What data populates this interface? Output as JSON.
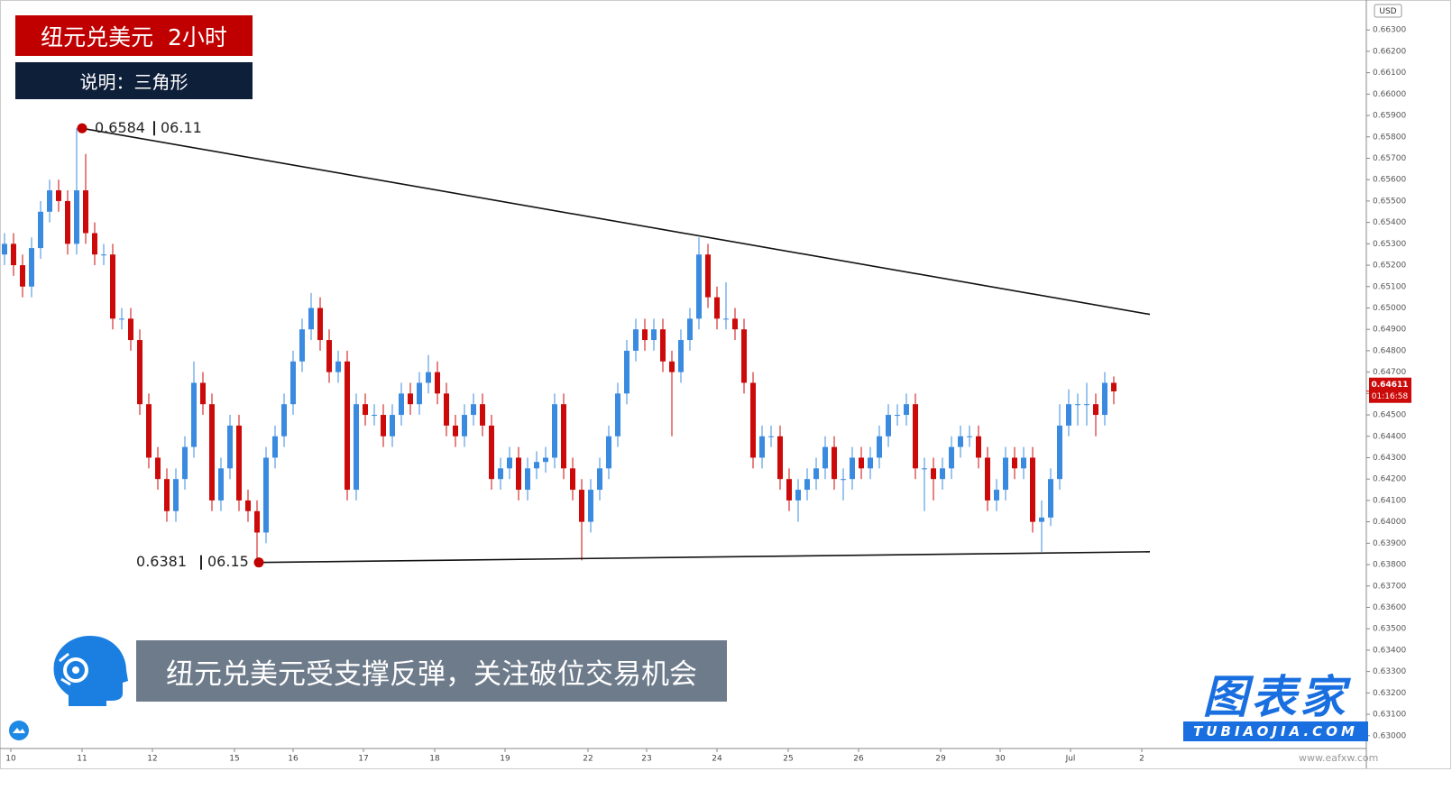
{
  "header": {
    "title": "纽元兑美元  2小时",
    "subtitle": "说明：三角形"
  },
  "caption": "纽元兑美元受支撑反弹，关注破位交易机会",
  "brand": {
    "name": "图表家",
    "url": "TUBIAOJIA.COM"
  },
  "watermark": "www.eafxw.com",
  "chart_data": {
    "type": "candlestick",
    "currency": "USD",
    "up_color": "#3a8be0",
    "down_color": "#cc0a0a",
    "x": [
      0,
      1,
      2,
      3,
      4,
      5,
      6,
      7,
      8,
      9,
      10,
      11,
      12,
      13,
      14,
      15,
      16,
      17,
      18,
      19,
      20,
      21,
      22,
      23,
      24,
      25,
      26,
      27,
      28,
      29,
      30,
      31,
      32,
      33,
      34,
      35,
      36,
      37,
      38,
      39,
      40,
      41,
      42,
      43,
      44,
      45,
      46,
      47,
      48,
      49,
      50,
      51,
      52,
      53,
      54,
      55,
      56,
      57,
      58,
      59,
      60,
      61,
      62,
      63,
      64,
      65,
      66,
      67,
      68,
      69,
      70,
      71,
      72,
      73,
      74,
      75,
      76,
      77,
      78,
      79,
      80,
      81,
      82,
      83,
      84,
      85,
      86,
      87,
      88,
      89,
      90,
      91,
      92,
      93,
      94,
      95,
      96,
      97,
      98,
      99,
      100,
      101,
      102,
      103,
      104,
      105,
      106,
      107,
      108,
      109,
      110,
      111,
      112,
      113,
      114,
      115,
      116,
      117,
      118,
      119,
      120,
      121,
      122,
      123
    ],
    "open": [
      0.6525,
      0.653,
      0.652,
      0.651,
      0.6528,
      0.6545,
      0.6555,
      0.655,
      0.653,
      0.6555,
      0.6535,
      0.6525,
      0.6525,
      0.6495,
      0.6495,
      0.6485,
      0.6455,
      0.643,
      0.642,
      0.6405,
      0.642,
      0.6435,
      0.6465,
      0.6455,
      0.641,
      0.6425,
      0.6445,
      0.641,
      0.6405,
      0.6395,
      0.643,
      0.644,
      0.6455,
      0.6475,
      0.649,
      0.65,
      0.6485,
      0.647,
      0.6475,
      0.6415,
      0.6455,
      0.645,
      0.645,
      0.644,
      0.645,
      0.646,
      0.6455,
      0.6465,
      0.647,
      0.646,
      0.6445,
      0.644,
      0.645,
      0.6455,
      0.6445,
      0.642,
      0.6425,
      0.643,
      0.6415,
      0.6425,
      0.6428,
      0.643,
      0.6455,
      0.6425,
      0.6415,
      0.64,
      0.6415,
      0.6425,
      0.644,
      0.646,
      0.648,
      0.649,
      0.6485,
      0.649,
      0.6475,
      0.647,
      0.6485,
      0.6495,
      0.6525,
      0.6505,
      0.6495,
      0.6495,
      0.649,
      0.6465,
      0.643,
      0.644,
      0.644,
      0.642,
      0.641,
      0.6415,
      0.642,
      0.6425,
      0.6435,
      0.642,
      0.642,
      0.643,
      0.6425,
      0.643,
      0.644,
      0.645,
      0.645,
      0.6455,
      0.6425,
      0.6425,
      0.642,
      0.6425,
      0.6435,
      0.644,
      0.644,
      0.643,
      0.641,
      0.6415,
      0.643,
      0.6425,
      0.643,
      0.64,
      0.6402,
      0.642,
      0.6445,
      0.6455,
      0.6455,
      0.6455,
      0.645,
      0.6465
    ],
    "high": [
      0.6535,
      0.6535,
      0.6525,
      0.6533,
      0.655,
      0.656,
      0.656,
      0.6555,
      0.6584,
      0.6572,
      0.654,
      0.653,
      0.653,
      0.65,
      0.65,
      0.649,
      0.646,
      0.6435,
      0.6425,
      0.6425,
      0.644,
      0.6475,
      0.647,
      0.646,
      0.643,
      0.645,
      0.645,
      0.6415,
      0.641,
      0.6435,
      0.6445,
      0.646,
      0.648,
      0.6495,
      0.6507,
      0.6505,
      0.649,
      0.648,
      0.648,
      0.646,
      0.646,
      0.6455,
      0.6455,
      0.6455,
      0.6465,
      0.6465,
      0.647,
      0.6478,
      0.6475,
      0.6465,
      0.645,
      0.6455,
      0.646,
      0.646,
      0.645,
      0.643,
      0.6435,
      0.6435,
      0.643,
      0.6433,
      0.6435,
      0.646,
      0.646,
      0.643,
      0.642,
      0.642,
      0.643,
      0.6445,
      0.6465,
      0.6485,
      0.6495,
      0.6495,
      0.6495,
      0.6495,
      0.648,
      0.649,
      0.65,
      0.6533,
      0.653,
      0.651,
      0.6512,
      0.65,
      0.6495,
      0.647,
      0.6445,
      0.6445,
      0.6445,
      0.6425,
      0.642,
      0.6425,
      0.643,
      0.644,
      0.644,
      0.6425,
      0.6435,
      0.6435,
      0.6435,
      0.6445,
      0.6455,
      0.6455,
      0.646,
      0.646,
      0.643,
      0.643,
      0.643,
      0.644,
      0.6445,
      0.6445,
      0.6445,
      0.6435,
      0.642,
      0.6435,
      0.6435,
      0.6435,
      0.6435,
      0.641,
      0.6425,
      0.6455,
      0.6462,
      0.646,
      0.6465,
      0.646,
      0.647,
      0.6468
    ],
    "low": [
      0.652,
      0.6515,
      0.6505,
      0.6505,
      0.6523,
      0.654,
      0.6545,
      0.6525,
      0.6525,
      0.653,
      0.652,
      0.652,
      0.649,
      0.649,
      0.648,
      0.645,
      0.6425,
      0.6415,
      0.64,
      0.64,
      0.6415,
      0.643,
      0.645,
      0.6405,
      0.6405,
      0.642,
      0.6405,
      0.64,
      0.6381,
      0.639,
      0.6425,
      0.6435,
      0.645,
      0.647,
      0.6485,
      0.648,
      0.6465,
      0.6465,
      0.641,
      0.641,
      0.6445,
      0.6445,
      0.6435,
      0.6435,
      0.6445,
      0.645,
      0.645,
      0.646,
      0.6455,
      0.644,
      0.6435,
      0.6435,
      0.6445,
      0.644,
      0.6415,
      0.6415,
      0.642,
      0.641,
      0.641,
      0.642,
      0.6423,
      0.6425,
      0.642,
      0.641,
      0.6382,
      0.6395,
      0.641,
      0.642,
      0.6435,
      0.6455,
      0.6475,
      0.648,
      0.648,
      0.647,
      0.644,
      0.6465,
      0.648,
      0.649,
      0.65,
      0.649,
      0.649,
      0.6485,
      0.646,
      0.6425,
      0.6425,
      0.6435,
      0.6415,
      0.6405,
      0.64,
      0.641,
      0.6415,
      0.642,
      0.6415,
      0.641,
      0.6415,
      0.642,
      0.642,
      0.6425,
      0.6435,
      0.6445,
      0.6445,
      0.642,
      0.6405,
      0.641,
      0.6415,
      0.642,
      0.643,
      0.6435,
      0.6425,
      0.6405,
      0.6405,
      0.641,
      0.642,
      0.642,
      0.6395,
      0.6386,
      0.6398,
      0.6415,
      0.644,
      0.6445,
      0.6445,
      0.644,
      0.6445,
      0.6455
    ],
    "close": [
      0.653,
      0.652,
      0.651,
      0.6528,
      0.6545,
      0.6555,
      0.655,
      0.653,
      0.6555,
      0.6535,
      0.6525,
      0.6525,
      0.6495,
      0.6495,
      0.6485,
      0.6455,
      0.643,
      0.642,
      0.6405,
      0.642,
      0.6435,
      0.6465,
      0.6455,
      0.641,
      0.6425,
      0.6445,
      0.641,
      0.6405,
      0.6395,
      0.643,
      0.644,
      0.6455,
      0.6475,
      0.649,
      0.65,
      0.6485,
      0.647,
      0.6475,
      0.6415,
      0.6455,
      0.645,
      0.645,
      0.644,
      0.645,
      0.646,
      0.6455,
      0.6465,
      0.647,
      0.646,
      0.6445,
      0.644,
      0.645,
      0.6455,
      0.6445,
      0.642,
      0.6425,
      0.643,
      0.6415,
      0.6425,
      0.6428,
      0.643,
      0.6455,
      0.6425,
      0.6415,
      0.64,
      0.6415,
      0.6425,
      0.644,
      0.646,
      0.648,
      0.649,
      0.6485,
      0.649,
      0.6475,
      0.647,
      0.6485,
      0.6495,
      0.6525,
      0.6505,
      0.6495,
      0.6495,
      0.649,
      0.6465,
      0.643,
      0.644,
      0.644,
      0.642,
      0.641,
      0.6415,
      0.642,
      0.6425,
      0.6435,
      0.642,
      0.642,
      0.643,
      0.6425,
      0.643,
      0.644,
      0.645,
      0.645,
      0.6455,
      0.6425,
      0.6425,
      0.642,
      0.6425,
      0.6435,
      0.644,
      0.644,
      0.643,
      0.641,
      0.6415,
      0.643,
      0.6425,
      0.643,
      0.64,
      0.6402,
      0.642,
      0.6445,
      0.6455,
      0.6455,
      0.6455,
      0.645,
      0.6465,
      0.6461
    ],
    "xlim": [
      -0.5,
      151
    ],
    "ylim": [
      0.6294,
      0.6644
    ],
    "xticks": [
      {
        "value": 0.7,
        "label": "10"
      },
      {
        "value": 8.6,
        "label": "11"
      },
      {
        "value": 16.4,
        "label": "12"
      },
      {
        "value": 25.5,
        "label": "15"
      },
      {
        "value": 32.0,
        "label": "16"
      },
      {
        "value": 39.8,
        "label": "17"
      },
      {
        "value": 47.7,
        "label": "18"
      },
      {
        "value": 55.5,
        "label": "19"
      },
      {
        "value": 64.7,
        "label": "22"
      },
      {
        "value": 71.2,
        "label": "23"
      },
      {
        "value": 79.0,
        "label": "24"
      },
      {
        "value": 86.9,
        "label": "25"
      },
      {
        "value": 94.7,
        "label": "26"
      },
      {
        "value": 103.8,
        "label": "29"
      },
      {
        "value": 110.4,
        "label": "30"
      },
      {
        "value": 118.2,
        "label": "Jul"
      },
      {
        "value": 126.1,
        "label": "2"
      }
    ],
    "yticks": [
      {
        "value": 0.663,
        "label": "0.66300"
      },
      {
        "value": 0.662,
        "label": "0.66200"
      },
      {
        "value": 0.661,
        "label": "0.66100"
      },
      {
        "value": 0.66,
        "label": "0.66000"
      },
      {
        "value": 0.659,
        "label": "0.65900"
      },
      {
        "value": 0.658,
        "label": "0.65800"
      },
      {
        "value": 0.657,
        "label": "0.65700"
      },
      {
        "value": 0.656,
        "label": "0.65600"
      },
      {
        "value": 0.655,
        "label": "0.65500"
      },
      {
        "value": 0.654,
        "label": "0.65400"
      },
      {
        "value": 0.653,
        "label": "0.65300"
      },
      {
        "value": 0.652,
        "label": "0.65200"
      },
      {
        "value": 0.651,
        "label": "0.65100"
      },
      {
        "value": 0.65,
        "label": "0.65000"
      },
      {
        "value": 0.649,
        "label": "0.64900"
      },
      {
        "value": 0.648,
        "label": "0.64800"
      },
      {
        "value": 0.647,
        "label": "0.64700"
      },
      {
        "value": 0.646,
        "label": "0.64600"
      },
      {
        "value": 0.645,
        "label": "0.64500"
      },
      {
        "value": 0.644,
        "label": "0.64400"
      },
      {
        "value": 0.643,
        "label": "0.64300"
      },
      {
        "value": 0.642,
        "label": "0.64200"
      },
      {
        "value": 0.641,
        "label": "0.64100"
      },
      {
        "value": 0.64,
        "label": "0.64000"
      },
      {
        "value": 0.639,
        "label": "0.63900"
      },
      {
        "value": 0.638,
        "label": "0.63800"
      },
      {
        "value": 0.637,
        "label": "0.63700"
      },
      {
        "value": 0.636,
        "label": "0.63600"
      },
      {
        "value": 0.635,
        "label": "0.63500"
      },
      {
        "value": 0.634,
        "label": "0.63400"
      },
      {
        "value": 0.633,
        "label": "0.63300"
      },
      {
        "value": 0.632,
        "label": "0.63200"
      },
      {
        "value": 0.631,
        "label": "0.63100"
      },
      {
        "value": 0.63,
        "label": "0.63000"
      }
    ],
    "last_price": {
      "value": 0.64611,
      "label": "0.64611"
    },
    "countdown": "01:16:58",
    "trendlines": [
      {
        "x": [
          8.6,
          127
        ],
        "y": [
          0.6584,
          0.6497
        ],
        "color": "#111111"
      },
      {
        "x": [
          28.2,
          127
        ],
        "y": [
          0.6381,
          0.6386
        ],
        "color": "#111111"
      }
    ],
    "annotations": [
      {
        "value": 0.6584,
        "date": "06.11",
        "side": "right"
      },
      {
        "value": 0.6381,
        "date": "06.15",
        "side": "left"
      }
    ]
  }
}
